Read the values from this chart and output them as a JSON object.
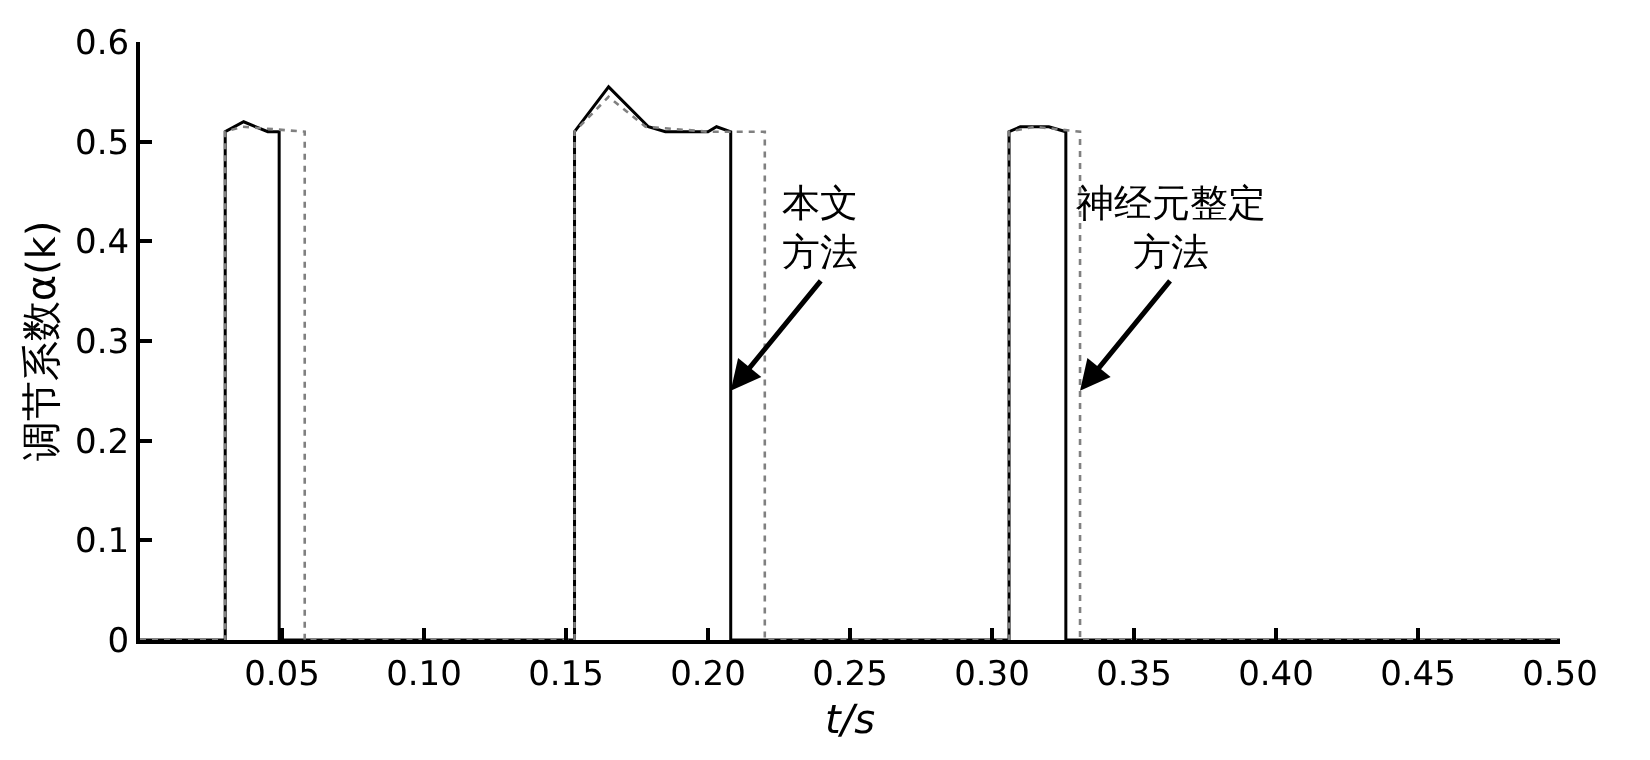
{
  "chart_data": {
    "type": "line",
    "xlabel": "t/s",
    "ylabel": "调节系数α(k)",
    "xlim": [
      0,
      0.5
    ],
    "xticks": [
      0.05,
      {
        "value": 0.1,
        "label": "0.10"
      },
      0.15,
      {
        "value": 0.2,
        "label": "0.20"
      },
      0.25,
      {
        "value": 0.3,
        "label": "0.30"
      },
      0.35,
      {
        "value": 0.4,
        "label": "0.40"
      },
      0.45,
      {
        "value": 0.5,
        "label": "0.50"
      }
    ],
    "ylim": [
      0,
      0.6
    ],
    "yticks": [
      0,
      0.1,
      0.2,
      0.3,
      0.4,
      0.5,
      0.6
    ],
    "marker": "none",
    "series": [
      {
        "color": "#000000",
        "line_style": "solid",
        "x": [
          0,
          0.03,
          0.03,
          0.0365,
          0.045,
          0.049,
          0.049,
          0.153,
          0.153,
          0.165,
          0.179,
          0.185,
          0.2,
          0.203,
          0.208,
          0.208,
          0.306,
          0.306,
          0.31,
          0.32,
          0.326,
          0.326,
          0.5
        ],
        "values": [
          0,
          0,
          0.51,
          0.52,
          0.51,
          0.51,
          0,
          0,
          0.51,
          0.555,
          0.515,
          0.51,
          0.51,
          0.515,
          0.51,
          0,
          0,
          0.51,
          0.515,
          0.515,
          0.51,
          0,
          0
        ]
      },
      {
        "color": "#808080",
        "line_style": "dotted",
        "x": [
          0,
          0.03,
          0.03,
          0.036,
          0.058,
          0.058,
          0.153,
          0.153,
          0.165,
          0.178,
          0.2,
          0.22,
          0.22,
          0.306,
          0.306,
          0.315,
          0.331,
          0.331,
          0.5
        ],
        "values": [
          0,
          0,
          0.51,
          0.515,
          0.51,
          0,
          0,
          0.51,
          0.545,
          0.515,
          0.51,
          0.51,
          0,
          0,
          0.51,
          0.515,
          0.51,
          0,
          0
        ]
      }
    ],
    "annotations": [
      {
        "text": "本文方法",
        "x": 0.208,
        "y": 0.25
      },
      {
        "text": "神经元整定方法",
        "x": 0.331,
        "y": 0.25
      }
    ]
  }
}
